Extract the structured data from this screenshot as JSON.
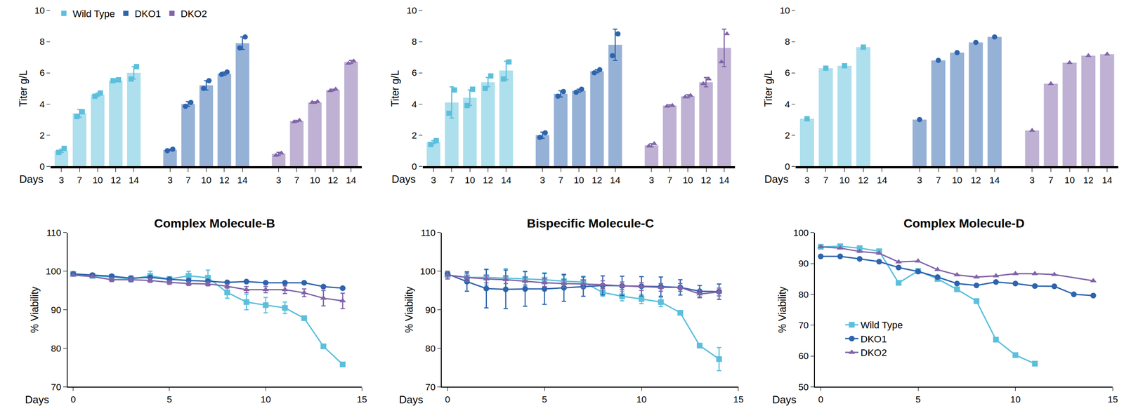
{
  "chart_data": [
    {
      "type": "bar",
      "y_label": "Titer g/L",
      "x_label": "Days",
      "ylim": [
        0,
        10
      ],
      "yticks": [
        0,
        2,
        4,
        6,
        8,
        10
      ],
      "grid": false,
      "legend": "top left",
      "categories": [
        "3",
        "7",
        "10",
        "12",
        "14"
      ],
      "series": [
        {
          "name": "Wild Type",
          "color": "#5bbfdc",
          "marker": "square",
          "values": [
            1.0,
            3.4,
            4.6,
            5.5,
            6.0
          ],
          "errors": [
            0.1,
            0.25,
            0.1,
            0.05,
            0.4
          ],
          "replicates": [
            [
              0.9,
              1.15
            ],
            [
              3.2,
              3.5
            ],
            [
              4.5,
              4.7
            ],
            [
              5.5,
              5.55
            ],
            [
              5.6,
              6.4
            ]
          ]
        },
        {
          "name": "DKO1",
          "color": "#2e64ad",
          "marker": "circle",
          "values": [
            1.05,
            4.0,
            5.2,
            5.95,
            7.9
          ],
          "errors": [
            0.05,
            0.15,
            0.3,
            0.1,
            0.4
          ],
          "replicates": [
            [
              1.0,
              1.1
            ],
            [
              3.85,
              4.1
            ],
            [
              5.0,
              5.5
            ],
            [
              5.9,
              6.05
            ],
            [
              7.6,
              8.3
            ]
          ]
        },
        {
          "name": "DKO2",
          "color": "#8064a8",
          "marker": "triangle-up",
          "values": [
            0.8,
            2.9,
            4.1,
            4.9,
            6.7
          ],
          "errors": [
            0.1,
            0.05,
            0.05,
            0.05,
            0.1
          ],
          "replicates": [
            [
              0.7,
              0.85
            ],
            [
              2.85,
              2.95
            ],
            [
              4.1,
              4.15
            ],
            [
              4.85,
              4.95
            ],
            [
              6.6,
              6.75
            ]
          ]
        }
      ]
    },
    {
      "type": "bar",
      "y_label": "Titer g/L",
      "x_label": "Days",
      "ylim": [
        0,
        10
      ],
      "yticks": [
        0,
        2,
        4,
        6,
        8,
        10
      ],
      "grid": false,
      "categories": [
        "3",
        "7",
        "10",
        "12",
        "14"
      ],
      "series": [
        {
          "name": "Wild Type",
          "color": "#5bbfdc",
          "marker": "square",
          "values": [
            1.55,
            4.1,
            4.4,
            5.4,
            6.15
          ],
          "errors": [
            0.1,
            1.0,
            0.5,
            0.3,
            0.6
          ],
          "replicates": [
            [
              1.4,
              1.65
            ],
            [
              3.4,
              4.9
            ],
            [
              3.9,
              4.95
            ],
            [
              5.0,
              5.8
            ],
            [
              5.6,
              6.7
            ]
          ]
        },
        {
          "name": "DKO1",
          "color": "#2e64ad",
          "marker": "circle",
          "values": [
            2.0,
            4.65,
            4.85,
            6.1,
            7.8
          ],
          "errors": [
            0.2,
            0.2,
            0.1,
            0.1,
            1.0
          ],
          "replicates": [
            [
              1.85,
              2.15
            ],
            [
              4.5,
              4.8
            ],
            [
              4.75,
              4.95
            ],
            [
              6.0,
              6.2
            ],
            [
              7.1,
              8.5
            ]
          ]
        },
        {
          "name": "DKO2",
          "color": "#8064a8",
          "marker": "triangle-up",
          "values": [
            1.35,
            3.9,
            4.5,
            5.4,
            7.6
          ],
          "errors": [
            0.1,
            0.05,
            0.1,
            0.3,
            1.2
          ],
          "replicates": [
            [
              1.3,
              1.45
            ],
            [
              3.85,
              3.9
            ],
            [
              4.45,
              4.55
            ],
            [
              5.3,
              5.6
            ],
            [
              6.7,
              8.5
            ]
          ]
        }
      ]
    },
    {
      "type": "bar",
      "y_label": "Titer g/L",
      "x_label": "Days",
      "ylim": [
        0,
        10
      ],
      "yticks": [
        0,
        2,
        4,
        6,
        8,
        10
      ],
      "grid": false,
      "categories": [
        "3",
        "7",
        "10",
        "12",
        "14"
      ],
      "series": [
        {
          "name": "Wild Type",
          "color": "#5bbfdc",
          "marker": "square",
          "values": [
            3.05,
            6.3,
            6.45,
            7.65,
            null
          ],
          "replicates": [
            [
              3.05
            ],
            [
              6.3
            ],
            [
              6.45
            ],
            [
              7.65
            ],
            []
          ]
        },
        {
          "name": "DKO1",
          "color": "#2e64ad",
          "marker": "circle",
          "values": [
            3.0,
            6.8,
            7.3,
            7.95,
            8.3
          ],
          "replicates": [
            [
              3.0
            ],
            [
              6.8
            ],
            [
              7.3
            ],
            [
              7.95
            ],
            [
              8.3
            ]
          ]
        },
        {
          "name": "DKO2",
          "color": "#8064a8",
          "marker": "triangle-up",
          "values": [
            2.3,
            5.3,
            6.65,
            7.1,
            7.2
          ],
          "replicates": [
            [
              2.3
            ],
            [
              5.3
            ],
            [
              6.65
            ],
            [
              7.1
            ],
            [
              7.2
            ]
          ]
        }
      ]
    },
    {
      "type": "line",
      "title": "Complex Molecule-B",
      "y_label": "% Viability",
      "x_label": "Days",
      "xlim": [
        -0.3,
        15
      ],
      "xticks": [
        0,
        5,
        10,
        15
      ],
      "ylim": [
        70,
        110
      ],
      "yticks": [
        70,
        80,
        90,
        100,
        110
      ],
      "grid": false,
      "series": [
        {
          "name": "Wild Type",
          "color": "#5bbfdc",
          "marker": "square",
          "x": [
            0,
            1,
            2,
            3,
            4,
            5,
            6,
            7,
            8,
            9,
            10,
            11,
            12,
            13,
            14
          ],
          "values": [
            99.3,
            98.8,
            98.5,
            98.0,
            98.8,
            98.0,
            98.8,
            98.3,
            94.5,
            92.0,
            91.2,
            90.5,
            87.8,
            80.5,
            75.8
          ],
          "errors": [
            0,
            0,
            0,
            0.8,
            1.2,
            0.5,
            1.2,
            2.0,
            1.5,
            2.0,
            2.0,
            1.5,
            0,
            0,
            0
          ]
        },
        {
          "name": "DKO1",
          "color": "#2e64ad",
          "marker": "circle",
          "x": [
            0,
            1,
            2,
            3,
            4,
            5,
            6,
            7,
            8,
            9,
            10,
            11,
            12,
            13,
            14
          ],
          "values": [
            99.3,
            99.0,
            98.7,
            98.2,
            98.4,
            97.9,
            97.6,
            97.4,
            97.1,
            97.3,
            97.0,
            97.0,
            97.0,
            96.0,
            95.6
          ]
        },
        {
          "name": "DKO2",
          "color": "#8064a8",
          "marker": "triangle-up",
          "x": [
            0,
            1,
            2,
            3,
            4,
            5,
            6,
            7,
            8,
            9,
            10,
            11,
            12,
            13,
            14
          ],
          "values": [
            99.0,
            98.6,
            97.8,
            97.8,
            97.6,
            97.1,
            96.8,
            96.7,
            96.1,
            95.2,
            95.2,
            95.2,
            94.4,
            93.0,
            92.3
          ],
          "errors": [
            0,
            0,
            0.5,
            0.5,
            0.5,
            0.5,
            0.5,
            0.5,
            0.5,
            0.8,
            0.8,
            1.0,
            1.0,
            2.0,
            2.0
          ]
        }
      ]
    },
    {
      "type": "line",
      "title": "Bispecific Molecule-C",
      "y_label": "% Viability",
      "x_label": "Days",
      "xlim": [
        -0.3,
        15
      ],
      "xticks": [
        0,
        5,
        10,
        15
      ],
      "ylim": [
        70,
        110
      ],
      "yticks": [
        70,
        80,
        90,
        100,
        110
      ],
      "grid": false,
      "series": [
        {
          "name": "Wild Type",
          "color": "#5bbfdc",
          "marker": "square",
          "x": [
            0,
            1,
            2,
            3,
            4,
            5,
            6,
            7,
            8,
            9,
            10,
            11,
            12,
            13,
            14
          ],
          "values": [
            99.0,
            98.4,
            98.4,
            98.2,
            98.0,
            97.8,
            97.4,
            97.2,
            94.5,
            93.5,
            92.8,
            92.0,
            89.2,
            80.7,
            77.2
          ],
          "errors": [
            1.0,
            1.5,
            2.0,
            2.5,
            2.0,
            1.8,
            1.5,
            1.5,
            1.0,
            1.2,
            1.2,
            1.2,
            0,
            0,
            3.0
          ]
        },
        {
          "name": "DKO1",
          "color": "#2e64ad",
          "marker": "circle",
          "x": [
            0,
            1,
            2,
            3,
            4,
            5,
            6,
            7,
            8,
            9,
            10,
            11,
            12,
            13,
            14
          ],
          "values": [
            99.3,
            97.3,
            95.5,
            95.3,
            95.4,
            95.4,
            95.7,
            96.0,
            96.3,
            96.2,
            96.1,
            96.0,
            95.8,
            94.8,
            94.7
          ],
          "errors": [
            0.5,
            2.5,
            5.0,
            5.0,
            4.5,
            4.0,
            3.5,
            2.5,
            2.5,
            2.5,
            2.5,
            2.5,
            2.0,
            1.5,
            2.0
          ]
        },
        {
          "name": "DKO2",
          "color": "#8064a8",
          "marker": "triangle-up",
          "x": [
            0,
            1,
            2,
            3,
            4,
            5,
            6,
            7,
            8,
            9,
            10,
            11,
            12,
            13,
            14
          ],
          "values": [
            99.0,
            98.4,
            98.0,
            97.8,
            97.4,
            97.0,
            96.8,
            96.7,
            96.5,
            96.2,
            96.0,
            95.8,
            95.8,
            94.1,
            94.6
          ],
          "errors": [
            1.0,
            1.0,
            1.0,
            1.0,
            1.0,
            1.0,
            1.0,
            1.0,
            1.0,
            1.0,
            1.0,
            1.0,
            1.0,
            1.0,
            1.0
          ]
        }
      ]
    },
    {
      "type": "line",
      "title": "Complex Molecule-D",
      "y_label": "% Viability",
      "x_label": "Days",
      "xlim": [
        -0.3,
        15
      ],
      "xticks": [
        0,
        5,
        10,
        15
      ],
      "ylim": [
        50,
        100
      ],
      "yticks": [
        50,
        60,
        70,
        80,
        90,
        100
      ],
      "grid": false,
      "legend": "lower left",
      "series": [
        {
          "name": "Wild Type",
          "color": "#5bbfdc",
          "marker": "square",
          "x": [
            0,
            1,
            2,
            3,
            4,
            5,
            6,
            7,
            8,
            9,
            10,
            11
          ],
          "values": [
            95.4,
            95.6,
            95.0,
            94.0,
            83.7,
            87.6,
            85.0,
            81.6,
            77.8,
            65.3,
            60.3,
            57.5
          ]
        },
        {
          "name": "DKO1",
          "color": "#2e64ad",
          "marker": "circle",
          "x": [
            0,
            1,
            2,
            3,
            4,
            5,
            6,
            7,
            8,
            9,
            10,
            11,
            12,
            13,
            14
          ],
          "values": [
            92.3,
            92.3,
            91.5,
            90.6,
            88.7,
            87.4,
            85.6,
            83.5,
            82.9,
            84.0,
            83.5,
            82.7,
            82.6,
            80.0,
            79.6
          ]
        },
        {
          "name": "DKO2",
          "color": "#8064a8",
          "marker": "triangle-up",
          "x": [
            0,
            1,
            2,
            3,
            4,
            5,
            6,
            7,
            8,
            9,
            10,
            11,
            12,
            14
          ],
          "values": [
            95.4,
            95.0,
            93.9,
            93.3,
            90.5,
            90.8,
            88.0,
            86.3,
            85.6,
            86.0,
            86.7,
            86.7,
            86.4,
            84.4
          ]
        }
      ]
    }
  ]
}
